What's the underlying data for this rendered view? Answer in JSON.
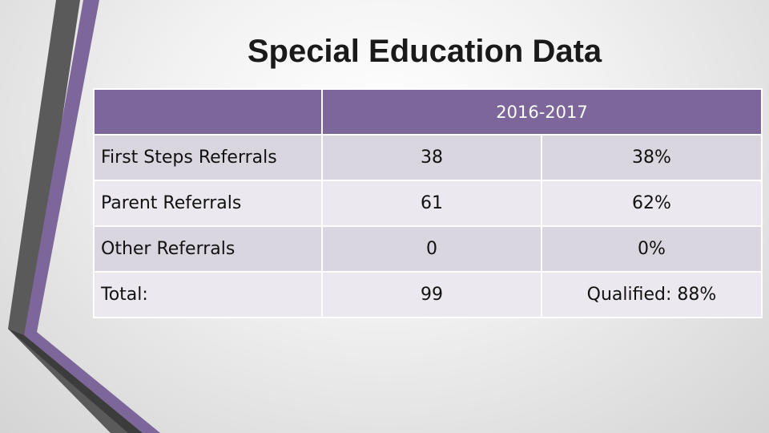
{
  "header": {
    "title": "Special Education Data"
  },
  "table": {
    "period": "2016-2017",
    "rows": [
      [
        "First Steps Referrals",
        "38",
        "38%"
      ],
      [
        "Parent Referrals",
        "61",
        "62%"
      ],
      [
        "Other Referrals",
        "0",
        "0%"
      ],
      [
        "Total:",
        "99",
        "Qualified: 88%"
      ]
    ]
  }
}
